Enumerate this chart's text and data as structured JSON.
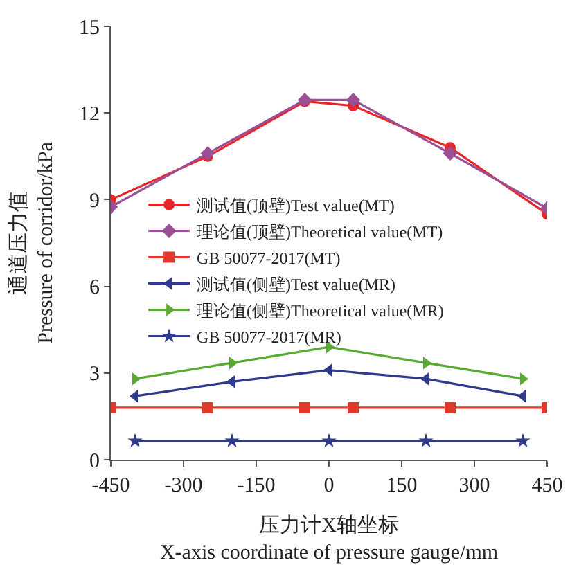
{
  "chart_data": {
    "type": "line",
    "xlabel": "压力计X轴坐标\nX-axis coordinate of pressure gauge/mm",
    "ylabel": "通道压力值\nPressure of corridor/kPa",
    "xlim": [
      -450,
      450
    ],
    "xticks": [
      -450,
      -300,
      -150,
      0,
      150,
      300,
      450
    ],
    "ylim": [
      0,
      15
    ],
    "yticks": [
      0,
      3,
      6,
      9,
      12,
      15
    ],
    "legend": "left",
    "series": [
      {
        "name": "测试值(顶壁)Test value(MT)",
        "color": "#e8262a",
        "marker": "circle",
        "x": [
          -450,
          -250,
          -50,
          50,
          250,
          450
        ],
        "values": [
          9.0,
          10.5,
          12.4,
          12.25,
          10.8,
          8.5
        ]
      },
      {
        "name": "理论值(顶壁)Theoretical value(MT)",
        "color": "#9b4f96",
        "marker": "diamond",
        "x": [
          -450,
          -250,
          -50,
          50,
          250,
          450
        ],
        "values": [
          8.75,
          10.6,
          12.45,
          12.45,
          10.6,
          8.7
        ]
      },
      {
        "name": "GB 50077-2017(MT)",
        "color": "#e03a2e",
        "marker": "square",
        "x": [
          -450,
          -250,
          -50,
          50,
          250,
          450
        ],
        "values": [
          1.8,
          1.8,
          1.8,
          1.8,
          1.8,
          1.8
        ]
      },
      {
        "name": "测试值(侧壁)Test value(MR)",
        "color": "#2e3a8c",
        "marker": "triangle-left",
        "x": [
          -400,
          -200,
          0,
          200,
          400
        ],
        "values": [
          2.2,
          2.7,
          3.1,
          2.8,
          2.2
        ]
      },
      {
        "name": "理论值(侧壁)Theoretical value(MR)",
        "color": "#5aaa32",
        "marker": "triangle-right",
        "x": [
          -400,
          -200,
          0,
          200,
          400
        ],
        "values": [
          2.8,
          3.35,
          3.9,
          3.35,
          2.8
        ]
      },
      {
        "name": "GB 50077-2017(MR)",
        "color": "#2e3a8c",
        "marker": "star",
        "x": [
          -400,
          -200,
          0,
          200,
          400
        ],
        "values": [
          0.65,
          0.65,
          0.65,
          0.65,
          0.65
        ]
      }
    ]
  }
}
